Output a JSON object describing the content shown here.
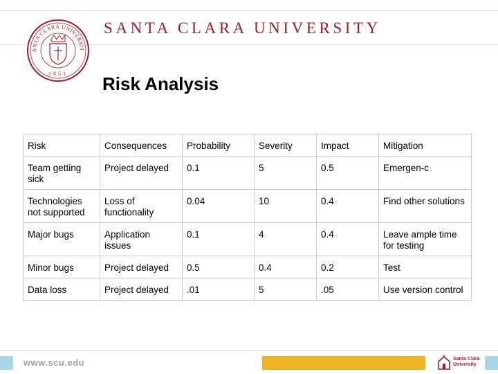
{
  "header": {
    "brand": "SANTA CLARA UNIVERSITY",
    "seal": {
      "arc_text": "SANTA CLARA UNIVERSITY",
      "year": "1851"
    }
  },
  "slide": {
    "title": "Risk Analysis"
  },
  "table": {
    "columns": [
      "Risk",
      "Consequences",
      "Probability",
      "Severity",
      "Impact",
      "Mitigation"
    ],
    "rows": [
      [
        "Team getting sick",
        "Project delayed",
        "0.1",
        "5",
        "0.5",
        "Emergen-c"
      ],
      [
        "Technologies not supported",
        "Loss of functionality",
        "0.04",
        "10",
        "0.4",
        "Find other solutions"
      ],
      [
        "Major bugs",
        "Application issues",
        "0.1",
        "4",
        "0.4",
        "Leave ample time for testing"
      ],
      [
        "Minor bugs",
        "Project delayed",
        "0.5",
        "0.4",
        "0.2",
        "Test"
      ],
      [
        "Data loss",
        "Project delayed",
        ".01",
        "5",
        ".05",
        "Use version control"
      ]
    ]
  },
  "footer": {
    "url": "www.scu.edu",
    "logo_line1": "Santa Clara",
    "logo_line2": "University"
  },
  "colors": {
    "brand_red": "#9e1b32",
    "gold": "#f0b323",
    "light_blue": "#a9d6e5"
  }
}
